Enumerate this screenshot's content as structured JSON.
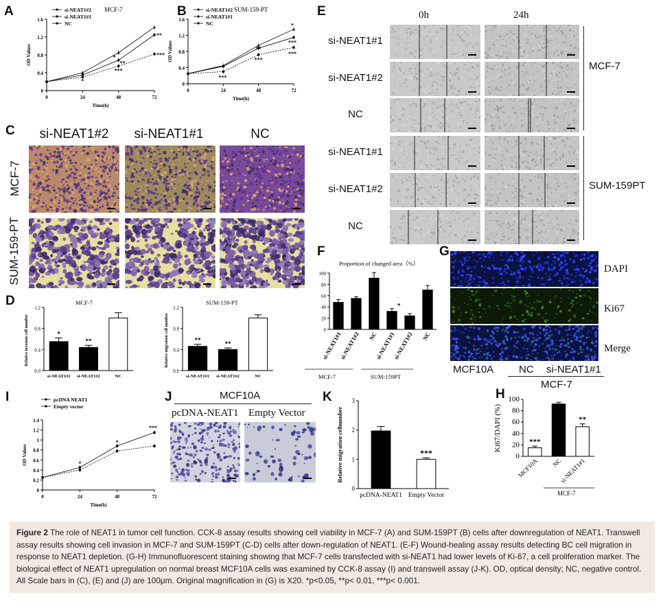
{
  "panels": {
    "A": {
      "label": "A",
      "title": "MCF-7",
      "ylabel": "OD Values",
      "xlabel": "Time(h)",
      "series_names": [
        "si-NEAT1#2",
        "si-NEAT1#1",
        "NC"
      ],
      "yticks": [
        "0",
        "0.4",
        "0.8",
        "1.2",
        "1.6"
      ],
      "xticks": [
        "0",
        "24",
        "48",
        "72"
      ],
      "sig": [
        "**",
        "***",
        "*",
        "**",
        "***",
        "*"
      ]
    },
    "B": {
      "label": "B",
      "title": "SUM-159-PT",
      "ylabel": "OD Values",
      "xlabel": "Time(h)",
      "series_names": [
        "si-NEAT1#2",
        "si-NEAT1#1",
        "NC"
      ],
      "yticks": [
        "0",
        "0.4",
        "0.8",
        "1.2",
        "1.6"
      ],
      "xticks": [
        "0",
        "24",
        "48",
        "72"
      ],
      "sig": [
        "***",
        "***",
        "***",
        "**",
        "***",
        "*"
      ]
    },
    "C": {
      "label": "C",
      "cols": [
        "si-NEAT1#2",
        "si-NEAT1#1",
        "NC"
      ],
      "rows": [
        "MCF-7",
        "SUM-159-PT"
      ]
    },
    "D": {
      "label": "D",
      "left": {
        "title": "MCF-7",
        "ylabel": "Relative invasion cell number",
        "cats": [
          "si-NEAT1#1",
          "si-NEAT1#2",
          "NC"
        ],
        "yticks": [
          "0.0",
          "0.4",
          "0.8",
          "1.2"
        ],
        "sig": [
          "*",
          "**",
          ""
        ]
      },
      "right": {
        "title": "SUM-159-PT",
        "ylabel": "Relative migration cell number",
        "cats": [
          "si-NEAT1#1",
          "si-NEAT1#2",
          "NC"
        ],
        "yticks": [
          "0.0",
          "0.4",
          "0.8",
          "1.2"
        ],
        "sig": [
          "**",
          "**",
          ""
        ]
      }
    },
    "E": {
      "label": "E",
      "times": [
        "0h",
        "24h"
      ],
      "rows": [
        "si-NEAT1#1",
        "si-NEAT1#2",
        "NC",
        "si-NEAT1#1",
        "si-NEAT1#2",
        "NC"
      ],
      "groups": [
        "MCF-7",
        "SUM-159PT"
      ]
    },
    "F": {
      "label": "F",
      "title": "Proportion of changed area（%）",
      "cats": [
        "si-NEAT1#1",
        "si-NEAT1#2",
        "NC",
        "si-NEAT1#1",
        "si-NEAT1#2",
        "NC"
      ],
      "yticks": [
        "0",
        "20",
        "40",
        "60",
        "80",
        "100"
      ],
      "groups": [
        "MCF-7",
        "SUM-159PT"
      ],
      "sig": [
        "*"
      ]
    },
    "G": {
      "label": "G",
      "rows": [
        "DAPI",
        "Ki67",
        "Merge"
      ],
      "xlabels": [
        "MCF10A",
        "NC",
        "si-NEAT1#1"
      ],
      "group": "MCF-7"
    },
    "H": {
      "label": "H",
      "ylabel": "Ki67/DAPI (%)",
      "cats": [
        "MCF10A",
        "NC",
        "si-NEAT1#1"
      ],
      "yticks": [
        "0",
        "20",
        "40",
        "60",
        "80",
        "100"
      ],
      "sig": [
        "***",
        "",
        "**"
      ],
      "group": "MCF-7"
    },
    "I": {
      "label": "I",
      "ylabel": "OD Values",
      "xlabel": "Time(h)",
      "series_names": [
        "pcDNA NEAT1",
        "Empty vector"
      ],
      "yticks": [
        "0",
        "0.2",
        "0.4",
        "0.6",
        "0.8",
        "1",
        "1.2",
        "1.4"
      ],
      "xticks": [
        "0",
        "24",
        "48",
        "72"
      ],
      "sig": [
        "*",
        "*",
        "***"
      ]
    },
    "J": {
      "label": "J",
      "title": "MCF10A",
      "cols": [
        "pcDNA-NEAT1",
        "Empty Vector"
      ]
    },
    "K": {
      "label": "K",
      "ylabel": "Relative migration cellnumber",
      "cats": [
        "pcDNA-NEAT1",
        "Empty Vector"
      ],
      "yticks": [
        "0",
        "1",
        "2",
        "3"
      ],
      "sig": [
        "",
        "***"
      ]
    }
  },
  "chart_data": [
    {
      "panel": "A",
      "type": "line",
      "title": "MCF-7",
      "xlabel": "Time(h)",
      "ylabel": "OD Values",
      "x": [
        0,
        24,
        48,
        72
      ],
      "ylim": [
        0,
        1.6
      ],
      "series": [
        {
          "name": "si-NEAT1#2",
          "values": [
            0.2,
            0.35,
            0.68,
            1.25
          ]
        },
        {
          "name": "si-NEAT1#1",
          "values": [
            0.2,
            0.3,
            0.55,
            0.82
          ]
        },
        {
          "name": "NC",
          "values": [
            0.2,
            0.4,
            0.85,
            1.42
          ]
        }
      ]
    },
    {
      "panel": "B",
      "type": "line",
      "title": "SUM-159-PT",
      "xlabel": "Time(h)",
      "ylabel": "OD Values",
      "x": [
        0,
        24,
        48,
        72
      ],
      "ylim": [
        0,
        1.6
      ],
      "series": [
        {
          "name": "si-NEAT1#2",
          "values": [
            0.25,
            0.43,
            0.88,
            1.15
          ]
        },
        {
          "name": "si-NEAT1#1",
          "values": [
            0.25,
            0.3,
            0.72,
            0.9
          ]
        },
        {
          "name": "NC",
          "values": [
            0.25,
            0.45,
            0.95,
            1.35
          ]
        }
      ]
    },
    {
      "panel": "D-left",
      "type": "bar",
      "title": "MCF-7",
      "ylabel": "Relative invasion cell number",
      "categories": [
        "si-NEAT1#1",
        "si-NEAT1#2",
        "NC"
      ],
      "values": [
        0.55,
        0.44,
        1.0
      ],
      "errors": [
        0.07,
        0.04,
        0.1
      ],
      "colors": [
        "#000",
        "#000",
        "#fff"
      ],
      "ylim": [
        0,
        1.2
      ]
    },
    {
      "panel": "D-right",
      "type": "bar",
      "title": "SUM-159-PT",
      "ylabel": "Relative migration cell number",
      "categories": [
        "si-NEAT1#1",
        "si-NEAT1#2",
        "NC"
      ],
      "values": [
        0.46,
        0.4,
        1.0
      ],
      "errors": [
        0.04,
        0.03,
        0.06
      ],
      "colors": [
        "#000",
        "#000",
        "#fff"
      ],
      "ylim": [
        0,
        1.2
      ]
    },
    {
      "panel": "F",
      "type": "bar",
      "title": "Proportion of changed area（%）",
      "categories": [
        "si-NEAT1#1",
        "si-NEAT1#2",
        "NC",
        "si-NEAT1#1",
        "si-NEAT1#2",
        "NC"
      ],
      "values": [
        48,
        55,
        91,
        32,
        24,
        70
      ],
      "errors": [
        5,
        3,
        10,
        5,
        4,
        8
      ],
      "ylim": [
        0,
        100
      ]
    },
    {
      "panel": "H",
      "type": "bar",
      "ylabel": "Ki67/DAPI (%)",
      "categories": [
        "MCF10A",
        "NC",
        "si-NEAT1#1"
      ],
      "values": [
        15,
        92,
        52
      ],
      "errors": [
        3,
        3,
        5
      ],
      "colors": [
        "#fff",
        "#000",
        "#fff"
      ],
      "ylim": [
        0,
        100
      ]
    },
    {
      "panel": "I",
      "type": "line",
      "xlabel": "Time(h)",
      "ylabel": "OD Values",
      "x": [
        0,
        24,
        48,
        72
      ],
      "ylim": [
        0,
        1.4
      ],
      "series": [
        {
          "name": "pcDNA NEAT1",
          "values": [
            0.25,
            0.45,
            0.88,
            1.15
          ]
        },
        {
          "name": "Empty vector",
          "values": [
            0.25,
            0.4,
            0.78,
            0.88
          ]
        }
      ]
    },
    {
      "panel": "K",
      "type": "bar",
      "ylabel": "Relative migration cellnumber",
      "categories": [
        "pcDNA-NEAT1",
        "Empty Vector"
      ],
      "values": [
        1.97,
        1.0
      ],
      "errors": [
        0.15,
        0.05
      ],
      "colors": [
        "#000",
        "#fff"
      ],
      "ylim": [
        0,
        3
      ]
    }
  ],
  "caption": {
    "figure_label": "Figure 2",
    "text": "The role of NEAT1 in tumor cell function. CCK-8 assay results showing cell viability in MCF-7 (A) and SUM-159PT (B) cells after downregulation of NEAT1. Transwell assay results showing cell invasion in MCF-7 and SUM-159PT (C-D) cells after down-regulation of NEAT1. (E-F) Wound-healing assay results detecting BC cell migration in response to NEAT1 depletion. (G-H) Immunofluorescent staining showing that MCF-7 cells transfected with si-NEAT1 had lower levels of Ki-67, a cell proliferation marker. The biological effect of NEAT1 upregulation on normal breast MCF10A cells was examined by CCK-8 assay (I) and transwell assay (J-K). OD, optical density; NC, negative control. All Scale bars in (C), (E) and (J) are 100μm. Original magnification in (G) is X20. *p<0.05, **p< 0.01, ***p< 0.001."
  }
}
